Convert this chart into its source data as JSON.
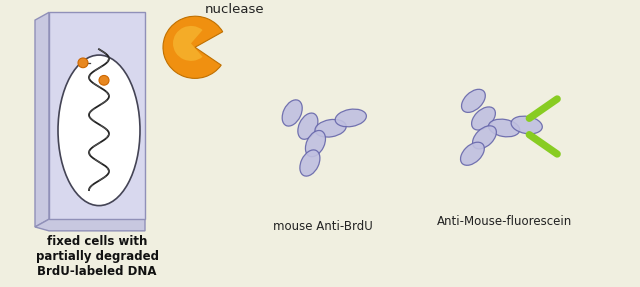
{
  "bg_color": "#f0efe0",
  "cell_face_color": "#d8d8ee",
  "cell_edge_color": "#9090b8",
  "cell_side_color": "#c8c8e0",
  "nucleus_color": "#ffffff",
  "nucleus_edge": "#444455",
  "dna_color": "#222222",
  "dot_color": "#e88820",
  "dot_edge": "#cc6600",
  "nuclease_outer": "#f09010",
  "nuclease_inner": "#f8c840",
  "antibody_face": "#c0c0e0",
  "antibody_edge": "#6666aa",
  "fluorescein_color": "#88cc22",
  "text_color": "#222222",
  "text_bold_color": "#111111",
  "label_nuclease": "nuclease",
  "label_cell": "fixed cells with\npartially degraded\nBrdU-labeled DNA",
  "label_ab1": "mouse Anti-BrdU",
  "label_ab2": "Anti-Mouse-fluorescein",
  "font_size": 8.5
}
